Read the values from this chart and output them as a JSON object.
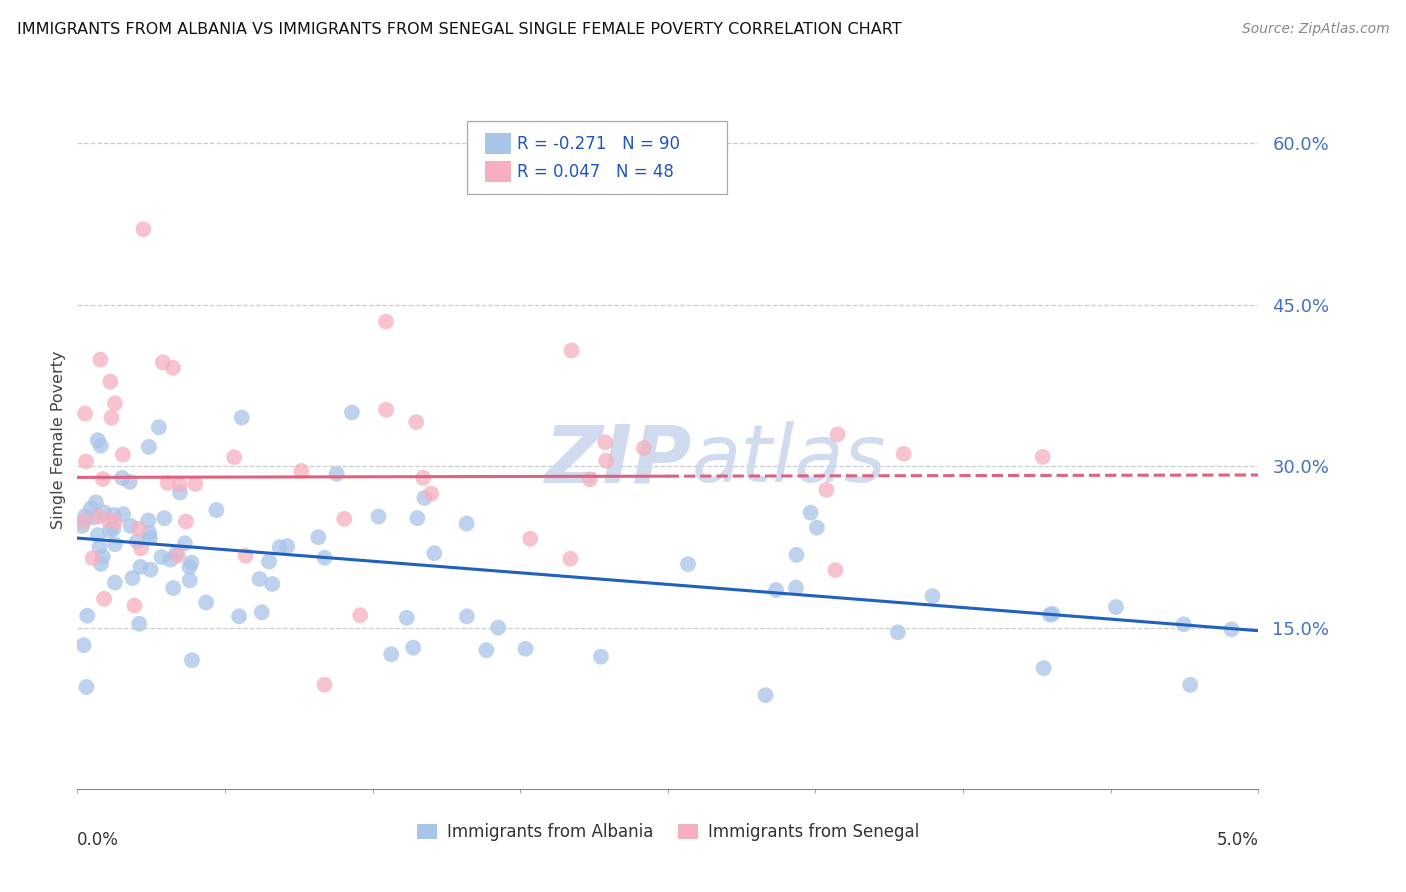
{
  "title": "IMMIGRANTS FROM ALBANIA VS IMMIGRANTS FROM SENEGAL SINGLE FEMALE POVERTY CORRELATION CHART",
  "source": "Source: ZipAtlas.com",
  "ylabel": "Single Female Poverty",
  "xlim": [
    0.0,
    0.05
  ],
  "ylim": [
    0.0,
    0.65
  ],
  "albania_R": -0.271,
  "albania_N": 90,
  "senegal_R": 0.047,
  "senegal_N": 48,
  "albania_color": "#a8c4e8",
  "senegal_color": "#f5afc0",
  "albania_line_color": "#2060c0",
  "senegal_line_color": "#e06080",
  "watermark_color": "#ccd8ee",
  "ytick_vals": [
    0.15,
    0.3,
    0.45,
    0.6
  ],
  "ytick_labels": [
    "15.0%",
    "30.0%",
    "45.0%",
    "60.0%"
  ],
  "grid_color": "#cccccc",
  "background_color": "#ffffff",
  "legend_albania_text": "R = -0.271   N = 90",
  "legend_senegal_text": "R = 0.047   N = 48",
  "bottom_legend_albania": "Immigrants from Albania",
  "bottom_legend_senegal": "Immigrants from Senegal"
}
